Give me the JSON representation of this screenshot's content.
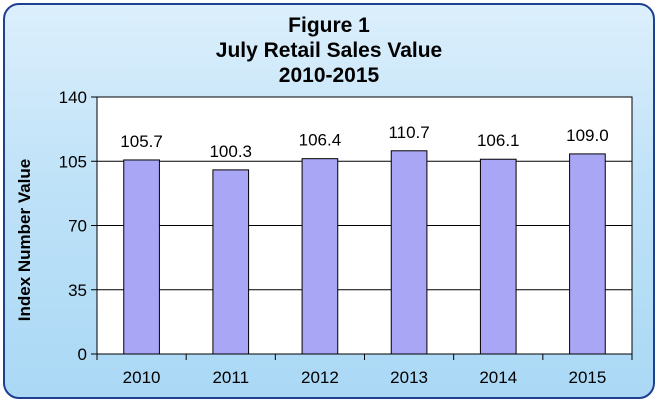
{
  "chart_data": {
    "type": "bar",
    "title": "Figure 1",
    "subtitle": "July Retail Sales Value",
    "subtitle2": "2010-2015",
    "ylabel": "Index Number Value",
    "xlabel": "",
    "categories": [
      "2010",
      "2011",
      "2012",
      "2013",
      "2014",
      "2015"
    ],
    "values": [
      105.7,
      100.3,
      106.4,
      110.7,
      106.1,
      109.0
    ],
    "value_labels": [
      "105.7",
      "100.3",
      "106.4",
      "110.7",
      "106.1",
      "109.0"
    ],
    "ylim": [
      0,
      140
    ],
    "yticks": [
      "0",
      "35",
      "70",
      "105",
      "140"
    ],
    "grid": true,
    "colors": {
      "bar_fill": "#a9a6f6",
      "bar_stroke": "#000000",
      "plot_bg": "#ffffff",
      "frame_border": "#1f3f8f",
      "gridline": "#000000"
    }
  }
}
